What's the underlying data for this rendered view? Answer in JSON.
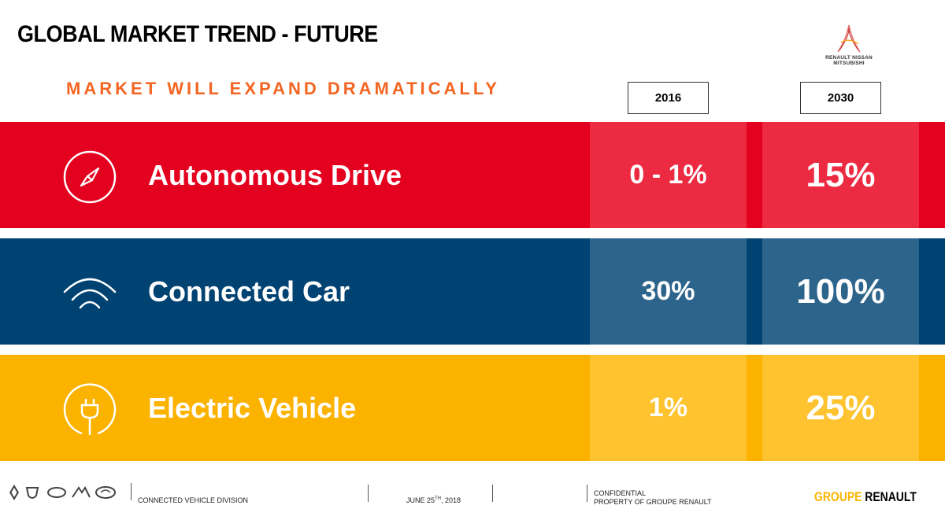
{
  "header": {
    "title": "GLOBAL MARKET TREND - FUTURE",
    "subtitle": "MARKET WILL EXPAND DRAMATICALLY",
    "alliance_logo_text": "RENAULT NISSAN MITSUBISHI"
  },
  "years": [
    "2016",
    "2030"
  ],
  "rows": [
    {
      "label": "Autonomous Drive",
      "icon": "compass-icon",
      "value_2016": "0 - 1%",
      "value_2030": "15%",
      "color": "#e4001f"
    },
    {
      "label": "Connected Car",
      "icon": "wifi-signal-icon",
      "value_2016": "30%",
      "value_2030": "100%",
      "color": "#004272"
    },
    {
      "label": "Electric Vehicle",
      "icon": "plug-icon",
      "value_2016": "1%",
      "value_2030": "25%",
      "color": "#fcb300"
    }
  ],
  "footer": {
    "division": "CONNECTED VEHICLE DIVISION",
    "date_prefix": "JUNE 25",
    "date_sup": "TH",
    "date_suffix": ", 2018",
    "confidential_line1": "CONFIDENTIAL",
    "confidential_line2": "PROPERTY OF GROUPE RENAULT",
    "brand_part1": "GROUPE",
    "brand_part2": "RENAULT"
  },
  "colors": {
    "accent_orange": "#f26522",
    "renault_yellow": "#fcb300",
    "red": "#e4001f",
    "blue": "#004272"
  }
}
